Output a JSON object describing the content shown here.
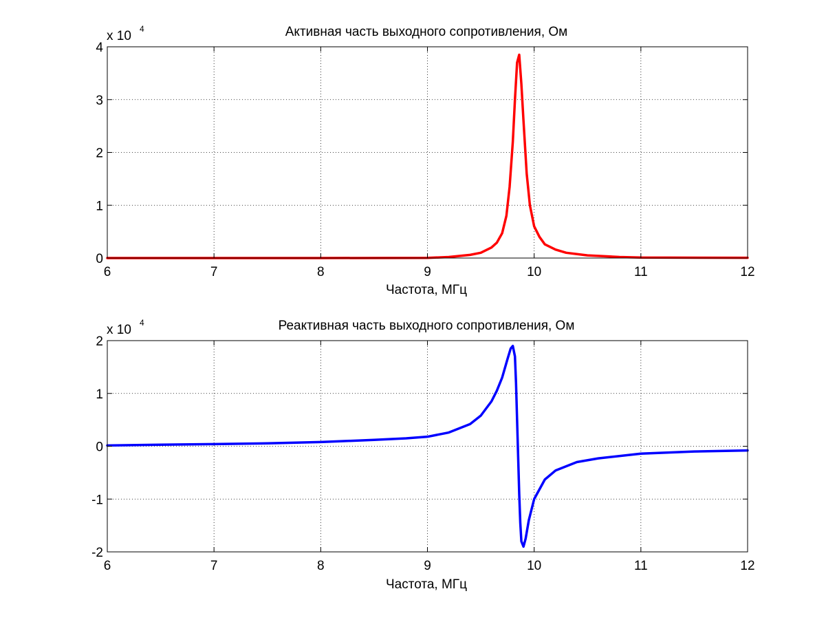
{
  "figure": {
    "background": "#ffffff"
  },
  "chart_data": [
    {
      "type": "line",
      "title": "Активная часть выходного сопротивления, Ом",
      "xlabel": "Частота, МГц",
      "ylabel": "",
      "y_multiplier_base": "x 10",
      "y_multiplier_exp": "4",
      "xlim": [
        6,
        12
      ],
      "ylim": [
        0,
        40000
      ],
      "xticks": [
        6,
        7,
        8,
        9,
        10,
        11,
        12
      ],
      "xtick_labels": [
        "6",
        "7",
        "8",
        "9",
        "10",
        "11",
        "12"
      ],
      "yticks": [
        0,
        10000,
        20000,
        30000,
        40000
      ],
      "ytick_labels": [
        "0",
        "1",
        "2",
        "3",
        "4"
      ],
      "grid": true,
      "series": [
        {
          "color": "#ff0000",
          "x": [
            6.0,
            8.0,
            9.0,
            9.2,
            9.4,
            9.5,
            9.6,
            9.65,
            9.7,
            9.74,
            9.77,
            9.8,
            9.82,
            9.84,
            9.86,
            9.88,
            9.9,
            9.93,
            9.96,
            10.0,
            10.05,
            10.1,
            10.2,
            10.3,
            10.5,
            10.8,
            11.0,
            12.0
          ],
          "y": [
            0,
            0,
            30,
            200,
            600,
            1000,
            2000,
            2900,
            4700,
            8000,
            13500,
            22000,
            30000,
            37000,
            38500,
            33000,
            26000,
            16000,
            10000,
            6000,
            4000,
            2600,
            1600,
            1000,
            500,
            200,
            100,
            50
          ]
        }
      ]
    },
    {
      "type": "line",
      "title": "Реактивная часть выходного сопротивления, Ом",
      "xlabel": "Частота, МГц",
      "ylabel": "",
      "y_multiplier_base": "x 10",
      "y_multiplier_exp": "4",
      "xlim": [
        6,
        12
      ],
      "ylim": [
        -20000,
        20000
      ],
      "xticks": [
        6,
        7,
        8,
        9,
        10,
        11,
        12
      ],
      "xtick_labels": [
        "6",
        "7",
        "8",
        "9",
        "10",
        "11",
        "12"
      ],
      "yticks": [
        -20000,
        -10000,
        0,
        10000,
        20000
      ],
      "ytick_labels": [
        "-2",
        "-1",
        "0",
        "1",
        "2"
      ],
      "grid": true,
      "series": [
        {
          "color": "#0000ff",
          "x": [
            6.0,
            6.5,
            7.0,
            7.5,
            8.0,
            8.5,
            8.8,
            9.0,
            9.2,
            9.4,
            9.5,
            9.6,
            9.65,
            9.7,
            9.75,
            9.78,
            9.8,
            9.82,
            9.83,
            9.84,
            9.85,
            9.86,
            9.87,
            9.88,
            9.9,
            9.92,
            9.95,
            10.0,
            10.1,
            10.2,
            10.4,
            10.6,
            11.0,
            11.5,
            12.0
          ],
          "y": [
            150,
            300,
            400,
            550,
            800,
            1200,
            1500,
            1800,
            2600,
            4200,
            5800,
            8500,
            10500,
            13000,
            16500,
            18500,
            19000,
            17000,
            12000,
            5000,
            -2000,
            -9000,
            -14500,
            -18000,
            -19000,
            -17500,
            -14000,
            -10000,
            -6300,
            -4600,
            -3000,
            -2300,
            -1400,
            -1000,
            -800
          ]
        }
      ]
    }
  ]
}
